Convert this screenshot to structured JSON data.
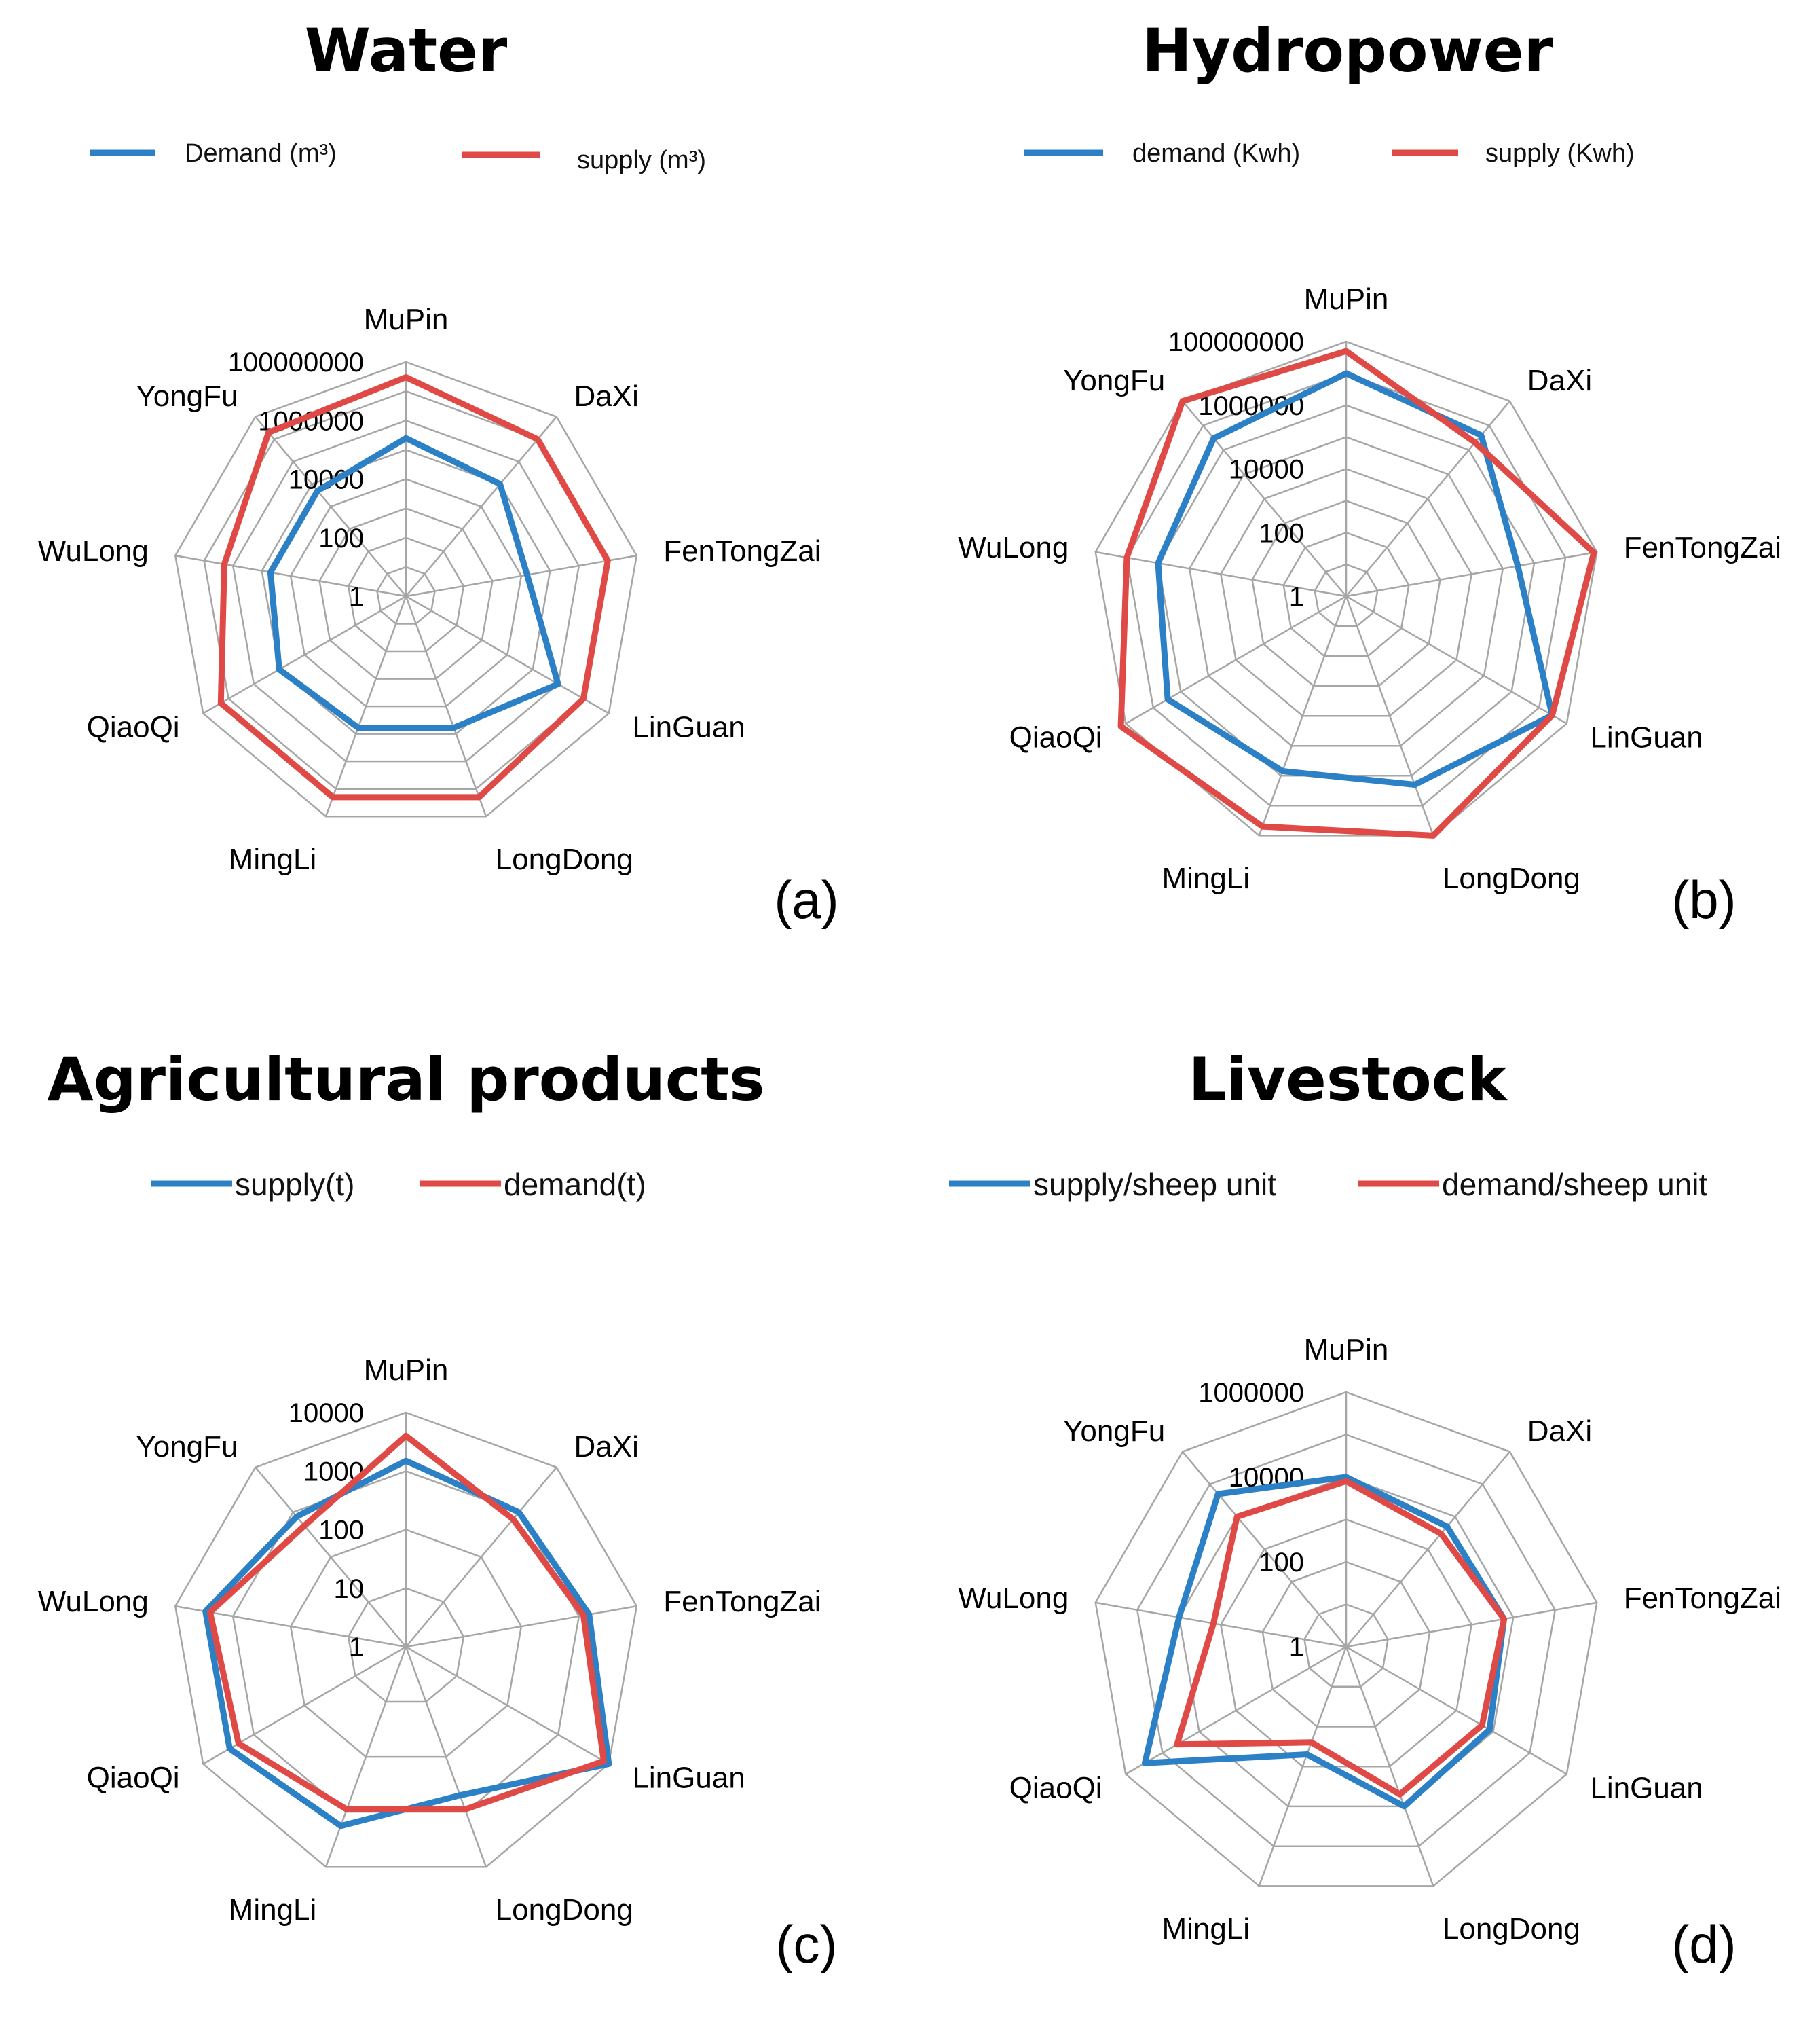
{
  "colors": {
    "blue": "#2c80c5",
    "red": "#e04a46"
  },
  "chart_data": [
    {
      "id": "a",
      "type": "radar",
      "title": "Water",
      "panel_label": "(a)",
      "scale": "log10",
      "rmax": 100000000,
      "ticks": [
        "1",
        "100",
        "10000",
        "1000000",
        "100000000"
      ],
      "categories": [
        "MuPin",
        "DaXi",
        "FenTongZai",
        "LinGuan",
        "LongDong",
        "MingLi",
        "QiaoQi",
        "WuLong",
        "YongFu"
      ],
      "series": [
        {
          "name": "Demand (m³)",
          "color": "blue",
          "values": [
            250000,
            100000,
            16000,
            1000000,
            60000,
            60000,
            100000,
            50000,
            50000
          ]
        },
        {
          "name": "supply (m³)",
          "color": "red",
          "values": [
            30000000,
            10000000,
            10000000,
            10000000,
            20000000,
            20000000,
            20000000,
            2000000,
            20000000
          ]
        }
      ]
    },
    {
      "id": "b",
      "type": "radar",
      "title": "Hydropower",
      "panel_label": "(b)",
      "scale": "log10",
      "rmax": 100000000,
      "ticks": [
        "1",
        "100",
        "10000",
        "1000000",
        "100000000"
      ],
      "categories": [
        "MuPin",
        "DaXi",
        "FenTongZai",
        "LinGuan",
        "LongDong",
        "MingLi",
        "QiaoQi",
        "WuLong",
        "YongFu"
      ],
      "series": [
        {
          "name": "demand (Kwh)",
          "color": "blue",
          "values": [
            10000000,
            4000000,
            300000,
            30000000,
            2000000,
            700000,
            3000000,
            1000000,
            3000000
          ]
        },
        {
          "name": "supply (Kwh)",
          "color": "red",
          "values": [
            50000000,
            2000000,
            80000000,
            30000000,
            100000000,
            50000000,
            150000000,
            10000000,
            100000000
          ]
        }
      ]
    },
    {
      "id": "c",
      "type": "radar",
      "title": "Agricultural products",
      "panel_label": "(c)",
      "scale": "log10",
      "rmax": 10000,
      "ticks": [
        "1",
        "10",
        "100",
        "1000",
        "10000"
      ],
      "categories": [
        "MuPin",
        "DaXi",
        "FenTongZai",
        "LinGuan",
        "LongDong",
        "MingLi",
        "QiaoQi",
        "WuLong",
        "YongFu"
      ],
      "series": [
        {
          "name": "supply(t)",
          "color": "blue",
          "values": [
            1500,
            1000,
            1500,
            10000,
            500,
            1800,
            3000,
            3000,
            800
          ]
        },
        {
          "name": "demand(t)",
          "color": "red",
          "values": [
            4000,
            700,
            1200,
            8000,
            900,
            900,
            2000,
            2500,
            500
          ]
        }
      ]
    },
    {
      "id": "d",
      "type": "radar",
      "title": "Livestock",
      "panel_label": "(d)",
      "scale": "log10",
      "rmax": 1000000,
      "ticks": [
        "1",
        "100",
        "10000",
        "1000000"
      ],
      "categories": [
        "MuPin",
        "DaXi",
        "FenTongZai",
        "LinGuan",
        "LongDong",
        "MingLi",
        "QiaoQi",
        "WuLong",
        "YongFu"
      ],
      "series": [
        {
          "name": "supply/sheep unit",
          "color": "blue",
          "values": [
            10000,
            5000,
            6000,
            8000,
            10000,
            500,
            300000,
            10000,
            50000
          ]
        },
        {
          "name": "demand/sheep unit",
          "color": "red",
          "values": [
            8000,
            3000,
            6000,
            5000,
            5000,
            250,
            40000,
            1500,
            10000
          ]
        }
      ]
    }
  ]
}
